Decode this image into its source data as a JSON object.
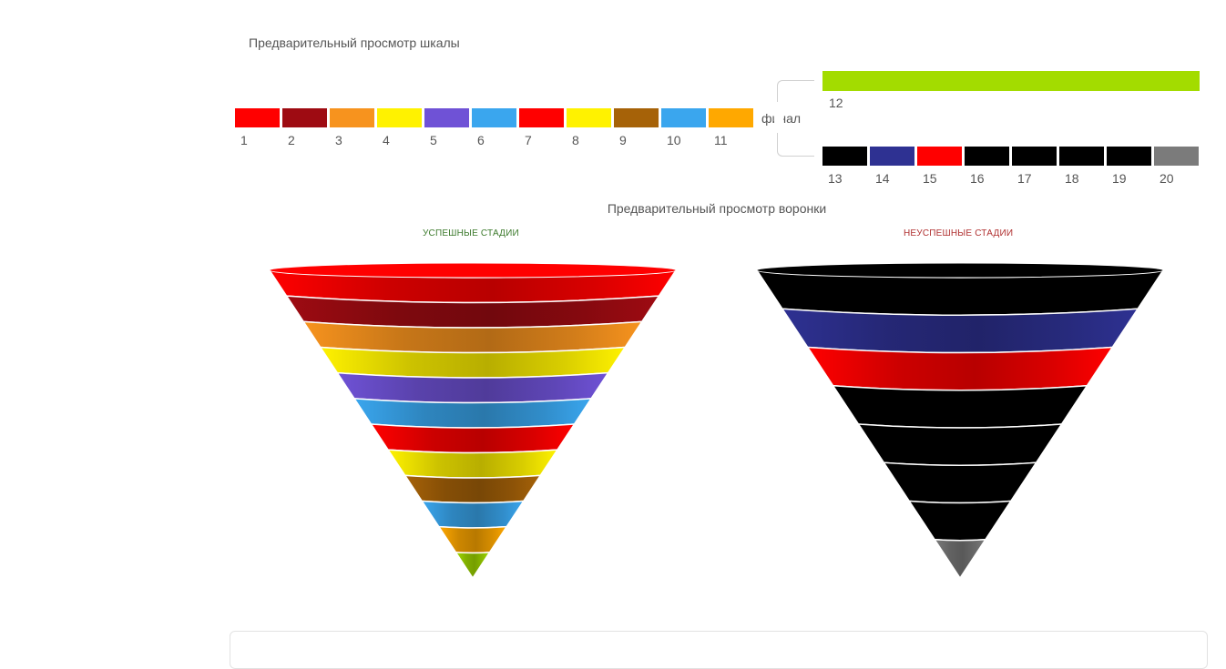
{
  "scale": {
    "title": "Предварительный просмотр шкалы",
    "final_label": "финал",
    "success_stages": [
      {
        "num": "1",
        "color": "#ff0000"
      },
      {
        "num": "2",
        "color": "#9e0b12"
      },
      {
        "num": "3",
        "color": "#f7931e"
      },
      {
        "num": "4",
        "color": "#fff200"
      },
      {
        "num": "5",
        "color": "#6f52d6"
      },
      {
        "num": "6",
        "color": "#3aa6ee"
      },
      {
        "num": "7",
        "color": "#ff0000"
      },
      {
        "num": "8",
        "color": "#fff200"
      },
      {
        "num": "9",
        "color": "#a66208"
      },
      {
        "num": "10",
        "color": "#3aa6ee"
      },
      {
        "num": "11",
        "color": "#ffa800"
      }
    ],
    "final_stage": {
      "num": "12",
      "color": "#a3dc00"
    },
    "fail_stages": [
      {
        "num": "13",
        "color": "#000000"
      },
      {
        "num": "14",
        "color": "#2e3192"
      },
      {
        "num": "15",
        "color": "#ff0000"
      },
      {
        "num": "16",
        "color": "#000000"
      },
      {
        "num": "17",
        "color": "#000000"
      },
      {
        "num": "18",
        "color": "#000000"
      },
      {
        "num": "19",
        "color": "#000000"
      },
      {
        "num": "20",
        "color": "#7b7b7b"
      }
    ]
  },
  "funnel": {
    "title": "Предварительный просмотр воронки",
    "success_label": "УСПЕШНЫЕ СТАДИИ",
    "fail_label": "НЕУСПЕШНЫЕ СТАДИИ"
  }
}
